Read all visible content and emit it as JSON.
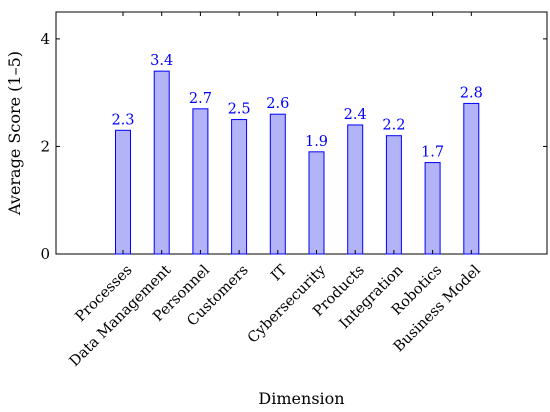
{
  "chart_data": {
    "type": "bar",
    "title": "",
    "xlabel": "Dimension",
    "ylabel": "Average Score (1–5)",
    "categories": [
      "Processes",
      "Data Management",
      "Personnel",
      "Customers",
      "IT",
      "Cybersecurity",
      "Products",
      "Integration",
      "Robotics",
      "Business Model"
    ],
    "values": [
      2.3,
      3.4,
      2.7,
      2.5,
      2.6,
      1.9,
      2.4,
      2.2,
      1.7,
      2.8
    ],
    "data_labels": [
      "2.3",
      "3.4",
      "2.7",
      "2.5",
      "2.6",
      "1.9",
      "2.4",
      "2.2",
      "1.7",
      "2.8"
    ],
    "ylim": [
      0,
      4.5
    ],
    "yticks": [
      0,
      2,
      4
    ],
    "ytick_labels": [
      "0",
      "2",
      "4"
    ],
    "grid": false,
    "legend": "none",
    "colors": {
      "bar_fill": "#b3b3f7",
      "bar_stroke": "#0000ff",
      "data_label": "#0000ff",
      "axis": "#000000"
    }
  }
}
